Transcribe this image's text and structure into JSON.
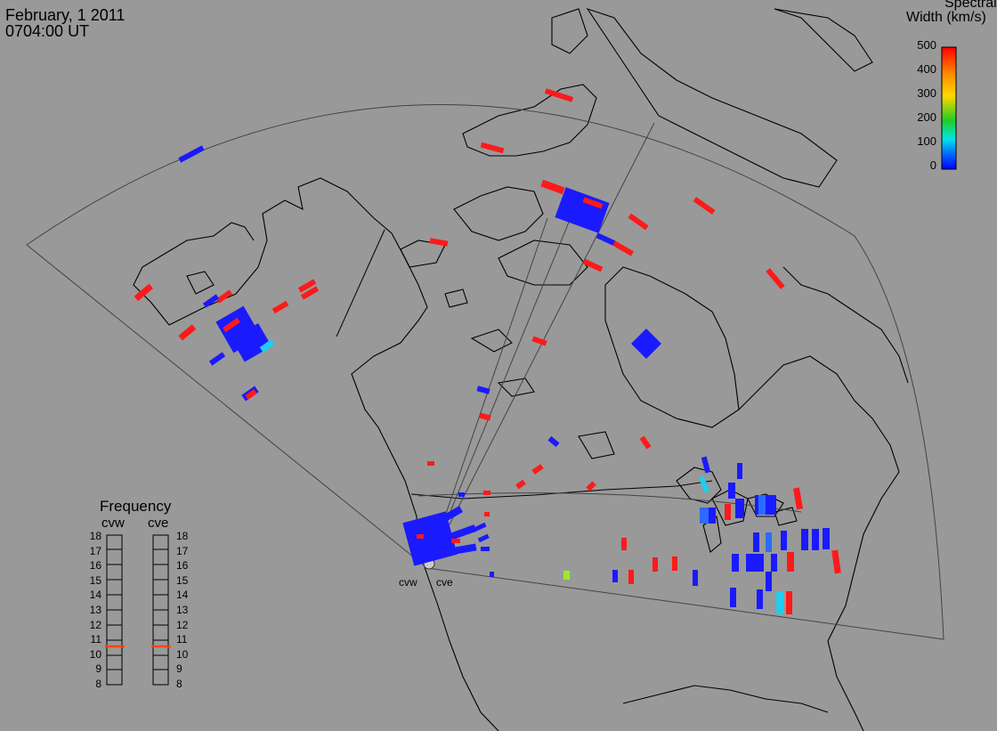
{
  "header": {
    "date": "February, 1 2011",
    "time": "0704:00 UT"
  },
  "colorbar": {
    "title_line1": "Spectral",
    "title_line2": "Width (km/s)",
    "ticks": [
      "500",
      "400",
      "300",
      "200",
      "100",
      "0"
    ],
    "range": [
      0,
      500
    ],
    "colors": [
      "#ff0000",
      "#ff8c00",
      "#ffd700",
      "#22cc22",
      "#00e5e5",
      "#0066ff",
      "#0000ff"
    ]
  },
  "frequency_panel": {
    "title": "Frequency",
    "columns": [
      "cvw",
      "cve"
    ],
    "scale": [
      "18",
      "17",
      "16",
      "15",
      "14",
      "13",
      "12",
      "11",
      "10",
      "9",
      "8"
    ],
    "values_mhz": [
      10.7,
      10.7
    ],
    "marker_color": "#ff4500"
  },
  "radars": [
    {
      "code": "cvw"
    },
    {
      "code": "cve"
    }
  ],
  "colors": {
    "background": "#999999",
    "blue": "#1a1aff",
    "red": "#ff1a1a",
    "cyan": "#22ccee",
    "green": "#99ee22"
  }
}
